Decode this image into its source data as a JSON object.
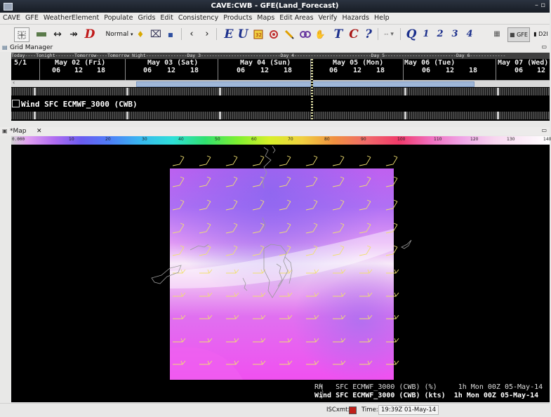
{
  "window": {
    "title": "CAVE:CWB - GFE(Land_Forecast)"
  },
  "menu": [
    "CAVE",
    "GFE",
    "WeatherElement",
    "Populate",
    "Grids",
    "Edit",
    "Consistency",
    "Products",
    "Maps",
    "Edit Areas",
    "Verify",
    "Hazards",
    "Help"
  ],
  "toolbar": {
    "mode_label": "Normal",
    "letters": {
      "e": "E",
      "u": "U",
      "t": "T",
      "c": "C",
      "q": "Q",
      "one": "1",
      "two": "2",
      "three": "3",
      "four": "4"
    },
    "perspective_gfe": "GFE",
    "perspective_d2d": "D2I"
  },
  "grid_manager": {
    "title": "Grid Manager",
    "timebar": "Today----Tonight-------Tomorrow----Tomorrow Night---------------Day 3-----------------------------Day 4----------------------------Day 5--------------------------Day 6-------------",
    "date_first": "5/1",
    "days": [
      {
        "label": "May 02 (Fri)",
        "hours": [
          "06",
          "12",
          "18"
        ]
      },
      {
        "label": "May 03 (Sat)",
        "hours": [
          "06",
          "12",
          "18"
        ]
      },
      {
        "label": "May 04 (Sun)",
        "hours": [
          "06",
          "12",
          "18"
        ]
      },
      {
        "label": "May 05 (Mon)",
        "hours": [
          "06",
          "12",
          "18"
        ]
      },
      {
        "label": "May 06 (Tue)",
        "hours": [
          "06",
          "12",
          "18"
        ]
      },
      {
        "label": "May 07 (Wed)",
        "hours": [
          "06",
          "12"
        ]
      }
    ],
    "row_label": "Wind SFC  ECMWF_3000 (CWB)"
  },
  "map": {
    "tab_label": "*Map",
    "colorbar_ticks": [
      "0",
      "10",
      "20",
      "30",
      "40",
      "50",
      "60",
      "70",
      "80",
      "90",
      "100",
      "110",
      "120",
      "130",
      "140"
    ],
    "colorbar_value": "0.000",
    "legend": [
      {
        "name": "RH",
        "text": "SFC ECMWF_3000 (CWB) (%)",
        "time": "1h Mon 00Z 05-May-14",
        "color": "#bdbdbd"
      },
      {
        "name": "Wind",
        "text": "SFC ECMWF_3000 (CWB) (kts)",
        "time": "1h Mon 00Z 05-May-14",
        "color": "#ffffff"
      }
    ]
  },
  "status": {
    "isc_label": "ISCxmt:",
    "time_label": "Time:",
    "time_value": "19:39Z 01-May-14",
    "isc_color": "#c0201a"
  }
}
